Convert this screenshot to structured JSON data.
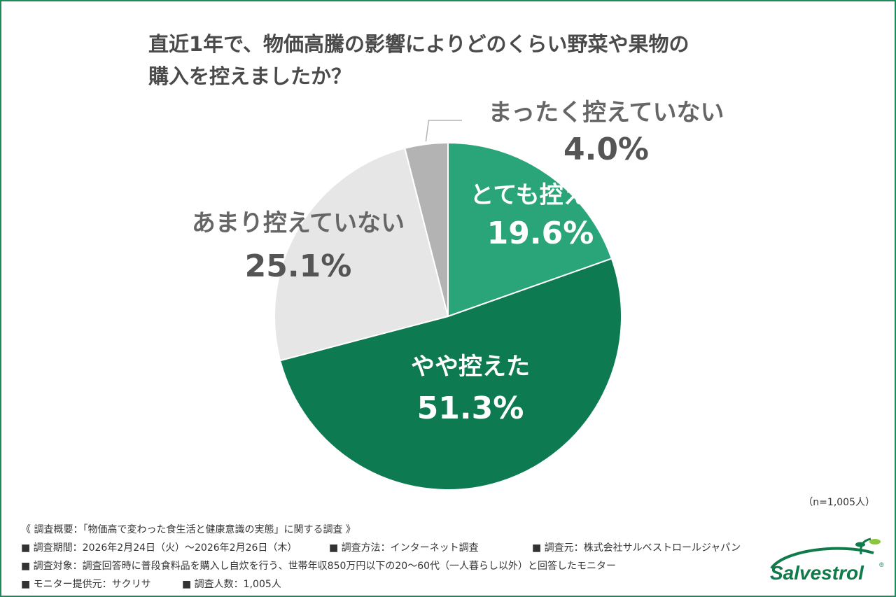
{
  "title_line1": "直近1年で、物価高騰の影響によりどのくらい野菜や果物の",
  "title_line2": "購入を控えましたか？",
  "chart_data": {
    "type": "pie",
    "title": "直近1年で、物価高騰の影響によりどのくらい野菜や果物の購入を控えましたか？",
    "slices": [
      {
        "label": "とても控えた",
        "value": 19.6,
        "display": "19.6%",
        "color": "#2aa57a"
      },
      {
        "label": "やや控えた",
        "value": 51.3,
        "display": "51.3%",
        "color": "#0e7a52"
      },
      {
        "label": "あまり控えていない",
        "value": 25.1,
        "display": "25.1%",
        "color": "#e6e6e6"
      },
      {
        "label": "まったく控えていない",
        "value": 4.0,
        "display": "4.0%",
        "color": "#b3b3b3"
      }
    ],
    "start_angle": "12 o'clock, clockwise",
    "legend": "none (labels on chart)"
  },
  "sample_size": "（n=1,005人）",
  "footer": {
    "heading": "《 調査概要：「物価高で変わった食生活と健康意識の実態」に関する調査 》",
    "period": "■ 調査期間：2026年2月24日（火）〜2026年2月26日（木）",
    "method": "■ 調査方法：インターネット調査",
    "organizer": "■ 調査元：株式会社サルベストロールジャパン",
    "target": "■ 調査対象：調査回答時に普段食料品を購入し自炊を行う、世帯年収850万円以下の20〜60代（一人暮らし以外）と回答したモニター",
    "provider": "■ モニター提供元：サクリサ",
    "count": "■ 調査人数：1,005人"
  },
  "logo": {
    "text": "Salvestrol",
    "mark": "®",
    "brand_color": "#0f7a4a"
  }
}
